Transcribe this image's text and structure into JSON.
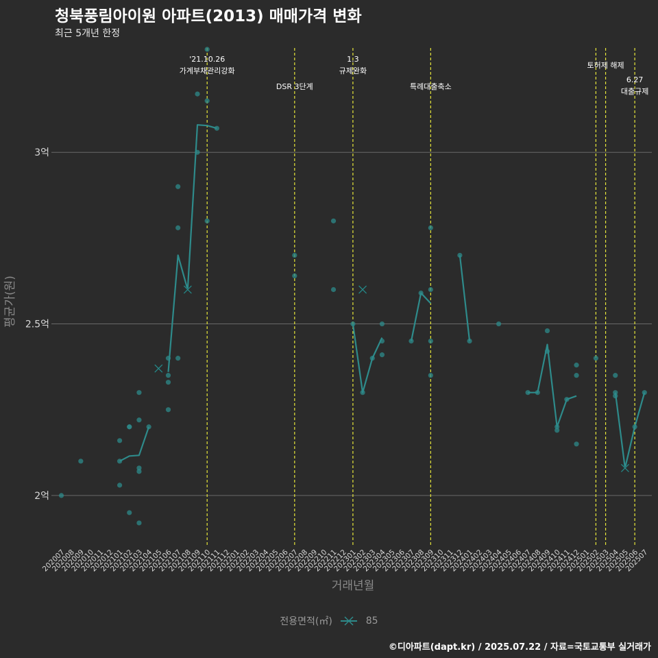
{
  "header": {
    "title": "청북풍림아이원 아파트(2013) 매매가격 변화",
    "subtitle": "최근 5개년 한정"
  },
  "caption": "©디아파트(dapt.kr) / 2025.07.22 / 자료=국토교통부 실거래가",
  "legend": {
    "title": "전용면적(㎡)",
    "label": "85"
  },
  "colors": {
    "background": "#2b2b2b",
    "series": "#2e8b8b",
    "event_line": "#e8e83a",
    "grid": "#6a6a6a"
  },
  "chart_data": {
    "type": "line",
    "xlabel": "거래년월",
    "ylabel": "평균가(원)",
    "ylim": [
      1.85,
      3.32
    ],
    "yticks": [
      {
        "value": 2.0,
        "label": "2억"
      },
      {
        "value": 2.5,
        "label": "2.5억"
      },
      {
        "value": 3.0,
        "label": "3억"
      }
    ],
    "categories": [
      "202007",
      "202008",
      "202009",
      "202010",
      "202011",
      "202012",
      "202101",
      "202102",
      "202103",
      "202104",
      "202105",
      "202106",
      "202107",
      "202108",
      "202109",
      "202110",
      "202111",
      "202112",
      "202201",
      "202202",
      "202203",
      "202204",
      "202205",
      "202206",
      "202207",
      "202208",
      "202209",
      "202210",
      "202211",
      "202212",
      "202301",
      "202302",
      "202303",
      "202304",
      "202305",
      "202306",
      "202307",
      "202308",
      "202309",
      "202310",
      "202311",
      "202312",
      "202401",
      "202402",
      "202403",
      "202404",
      "202405",
      "202406",
      "202407",
      "202408",
      "202409",
      "202410",
      "202411",
      "202412",
      "202501",
      "202502",
      "202503",
      "202504",
      "202505",
      "202506",
      "202507"
    ],
    "series": [
      {
        "name": "85",
        "line_segments": [
          [
            [
              "202101",
              2.1
            ],
            [
              "202102",
              2.115
            ],
            [
              "202103",
              2.117
            ],
            [
              "202104",
              2.2
            ]
          ],
          [
            [
              "202106",
              2.36
            ],
            [
              "202107",
              2.7
            ],
            [
              "202108",
              2.6
            ],
            [
              "202109",
              3.08
            ],
            [
              "202110",
              3.078
            ],
            [
              "202111",
              3.07
            ]
          ],
          [
            [
              "202301",
              2.5
            ],
            [
              "202302",
              2.3
            ],
            [
              "202303",
              2.4
            ],
            [
              "202304",
              2.46
            ]
          ],
          [
            [
              "202307",
              2.45
            ],
            [
              "202308",
              2.59
            ],
            [
              "202309",
              2.56
            ]
          ],
          [
            [
              "202312",
              2.7
            ],
            [
              "202401",
              2.45
            ]
          ],
          [
            [
              "202407",
              2.3
            ],
            [
              "202408",
              2.3
            ],
            [
              "202409",
              2.44
            ],
            [
              "202410",
              2.2
            ],
            [
              "202411",
              2.28
            ],
            [
              "202412",
              2.29
            ]
          ],
          [
            [
              "202504",
              2.3
            ],
            [
              "202505",
              2.08
            ],
            [
              "202506",
              2.2
            ],
            [
              "202507",
              2.3
            ]
          ]
        ],
        "points": [
          [
            "202007",
            2.0
          ],
          [
            "202009",
            2.1
          ],
          [
            "202101",
            2.16
          ],
          [
            "202101",
            2.1
          ],
          [
            "202101",
            2.03
          ],
          [
            "202102",
            2.2
          ],
          [
            "202102",
            2.2
          ],
          [
            "202102",
            1.95
          ],
          [
            "202103",
            2.3
          ],
          [
            "202103",
            2.22
          ],
          [
            "202103",
            2.08
          ],
          [
            "202103",
            2.07
          ],
          [
            "202103",
            1.92
          ],
          [
            "202104",
            2.2
          ],
          [
            "202106",
            2.4
          ],
          [
            "202106",
            2.35
          ],
          [
            "202106",
            2.33
          ],
          [
            "202106",
            2.25
          ],
          [
            "202107",
            2.9
          ],
          [
            "202107",
            2.78
          ],
          [
            "202107",
            2.4
          ],
          [
            "202109",
            3.17
          ],
          [
            "202109",
            3.0
          ],
          [
            "202110",
            3.3
          ],
          [
            "202110",
            3.15
          ],
          [
            "202110",
            2.8
          ],
          [
            "202111",
            3.07
          ],
          [
            "202207",
            2.7
          ],
          [
            "202207",
            2.64
          ],
          [
            "202211",
            2.8
          ],
          [
            "202211",
            2.6
          ],
          [
            "202301",
            2.5
          ],
          [
            "202302",
            2.3
          ],
          [
            "202303",
            2.4
          ],
          [
            "202304",
            2.5
          ],
          [
            "202304",
            2.45
          ],
          [
            "202304",
            2.41
          ],
          [
            "202307",
            2.45
          ],
          [
            "202308",
            2.59
          ],
          [
            "202309",
            2.78
          ],
          [
            "202309",
            2.6
          ],
          [
            "202309",
            2.45
          ],
          [
            "202309",
            2.35
          ],
          [
            "202312",
            2.7
          ],
          [
            "202401",
            2.45
          ],
          [
            "202404",
            2.5
          ],
          [
            "202407",
            2.3
          ],
          [
            "202408",
            2.3
          ],
          [
            "202409",
            2.48
          ],
          [
            "202409",
            2.42
          ],
          [
            "202410",
            2.2
          ],
          [
            "202410",
            2.19
          ],
          [
            "202411",
            2.28
          ],
          [
            "202412",
            2.38
          ],
          [
            "202412",
            2.35
          ],
          [
            "202412",
            2.15
          ],
          [
            "202502",
            2.4
          ],
          [
            "202504",
            2.35
          ],
          [
            "202504",
            2.3
          ],
          [
            "202504",
            2.29
          ],
          [
            "202506",
            2.2
          ],
          [
            "202507",
            2.3
          ]
        ],
        "markers": [
          [
            "202105",
            2.37
          ],
          [
            "202108",
            2.6
          ],
          [
            "202302",
            2.6
          ],
          [
            "202505",
            2.08
          ]
        ]
      }
    ],
    "events": [
      {
        "month": "202110",
        "label": "'21.10.26\n가계부채관리강화",
        "level": "high"
      },
      {
        "month": "202207",
        "label": "DSR 3단계",
        "level": "low"
      },
      {
        "month": "202301",
        "label": "1.3\n규제완화",
        "level": "high"
      },
      {
        "month": "202309",
        "label": "특례대출축소",
        "level": "low"
      },
      {
        "month": "202502",
        "label": "",
        "level": "none"
      },
      {
        "month": "202503",
        "label": "토허제 해제",
        "level": "mid"
      },
      {
        "month": "202506",
        "label": "6.27\n대출규제",
        "level": "lower"
      }
    ]
  }
}
